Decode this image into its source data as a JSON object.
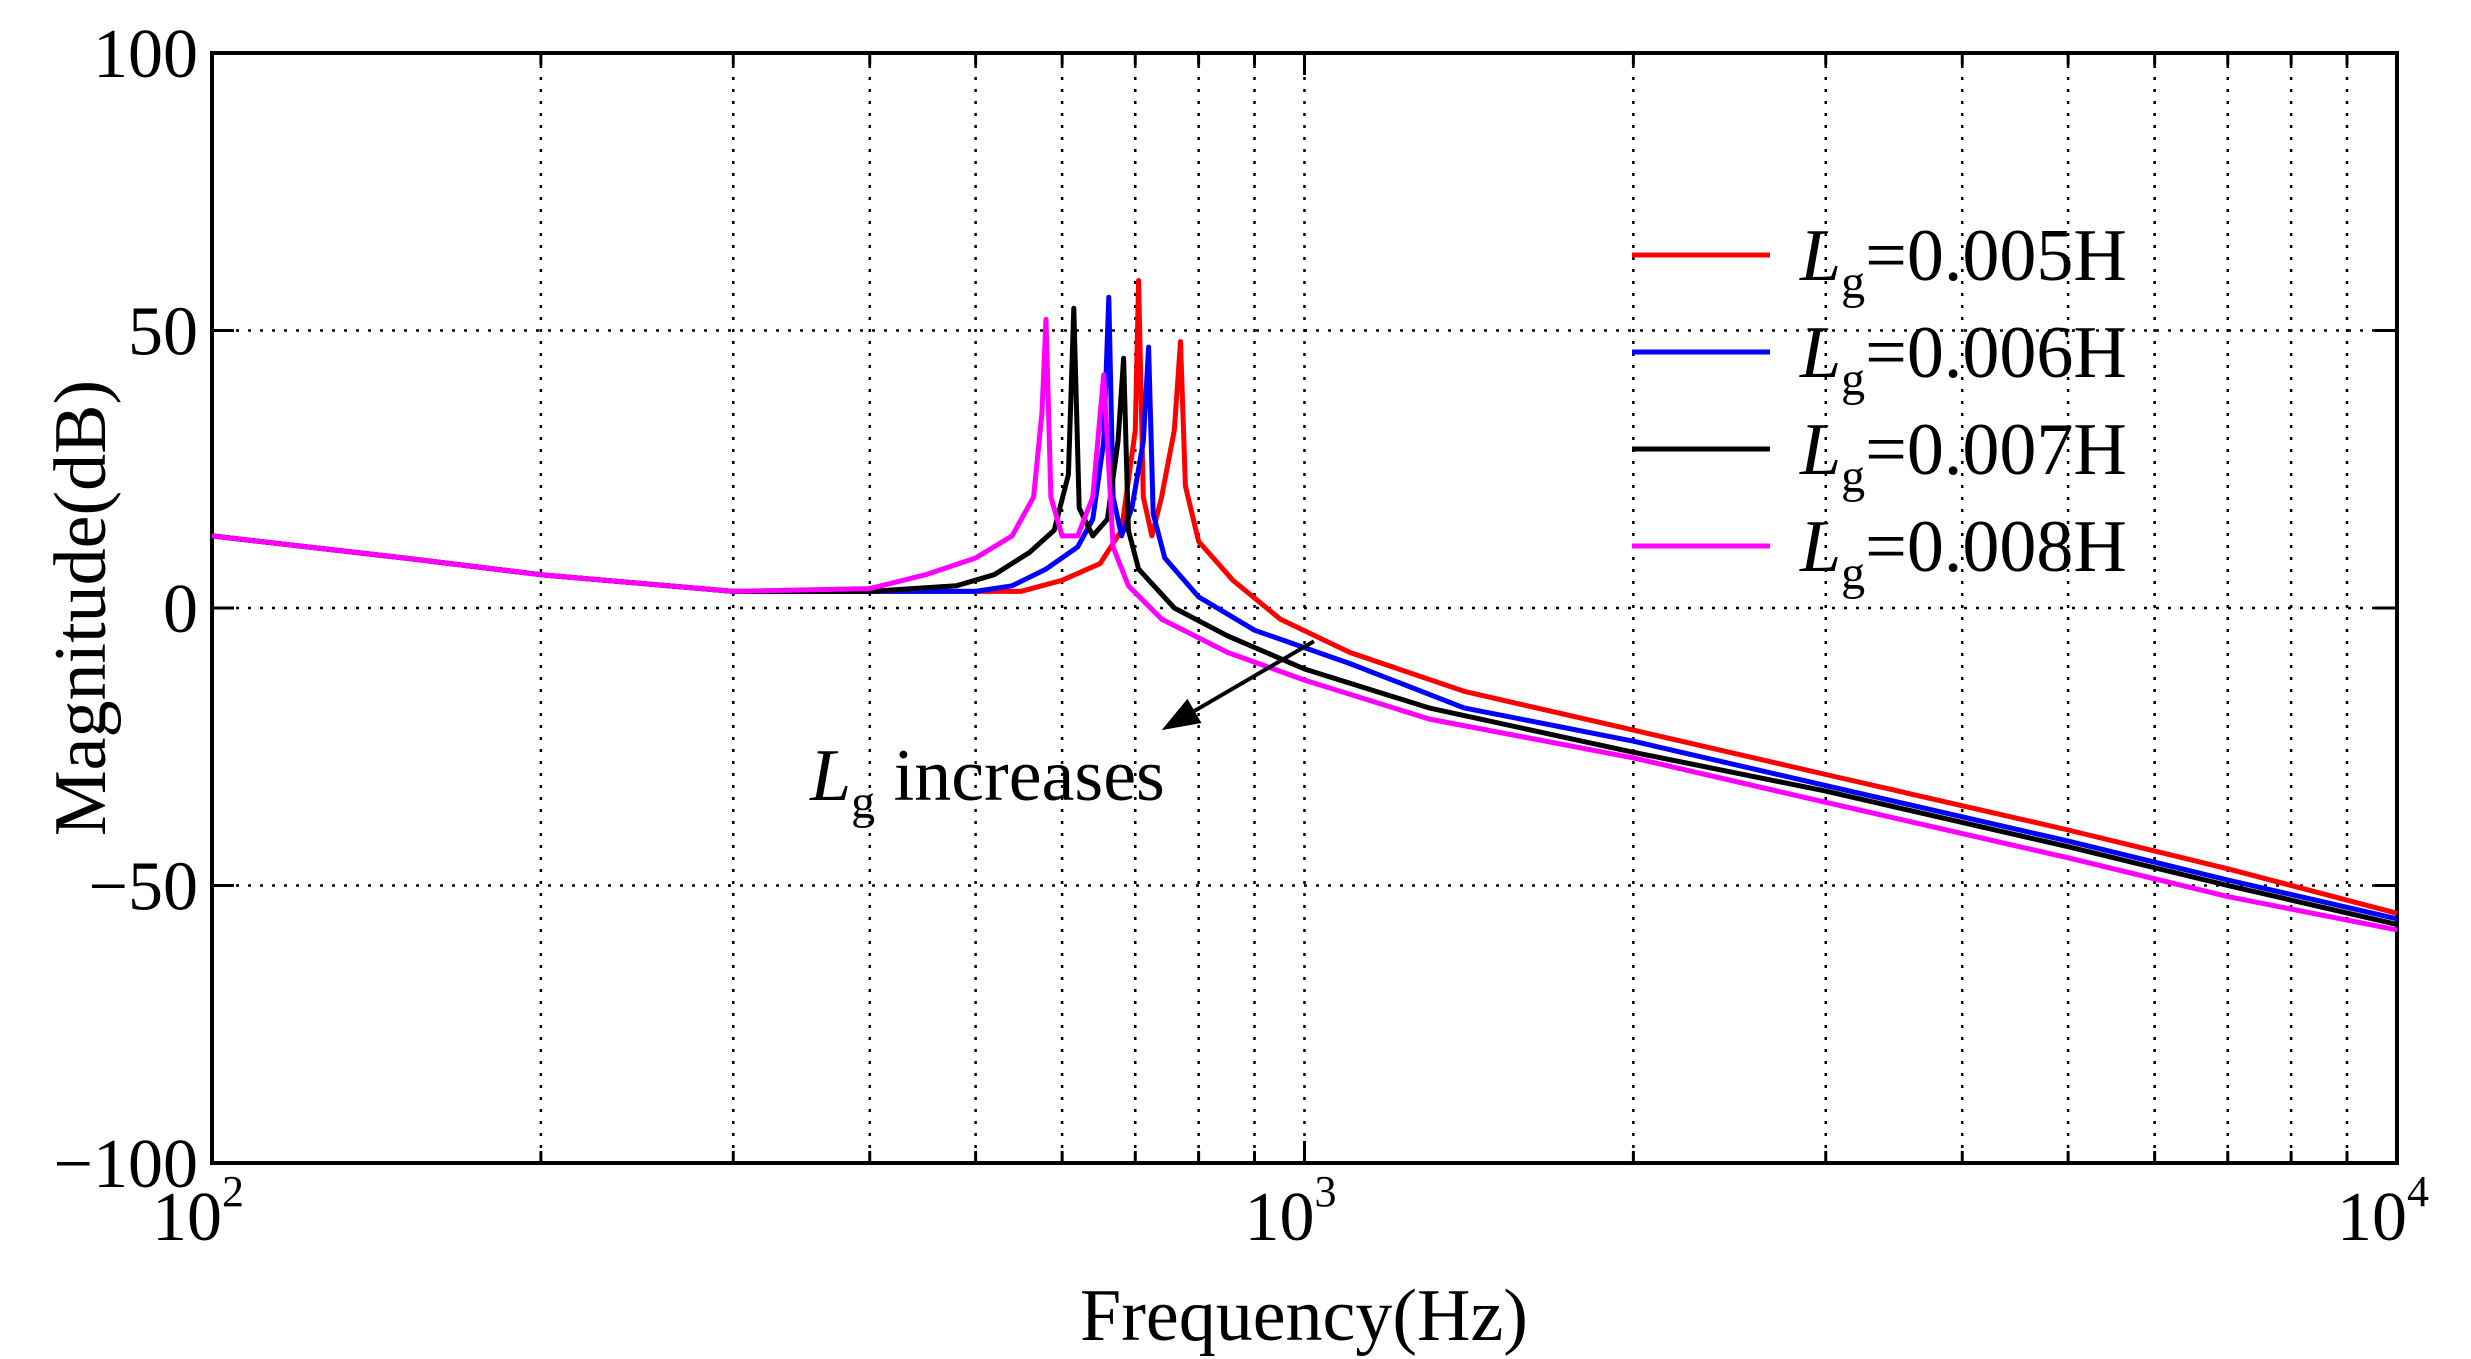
{
  "chart_data": {
    "type": "line",
    "title": "",
    "xlabel": "Frequency(Hz)",
    "ylabel": "Magnitude(dB)",
    "xscale": "log",
    "xlim": [
      100,
      10000
    ],
    "ylim": [
      -100,
      100
    ],
    "grid": true,
    "y_ticks": [
      {
        "value": 100,
        "label": "100"
      },
      {
        "value": 50,
        "label": "50"
      },
      {
        "value": 0,
        "label": "0"
      },
      {
        "value": -50,
        "label": "−50"
      },
      {
        "value": -100,
        "label": "−100"
      }
    ],
    "x_ticks": [
      {
        "value": 100,
        "base": "10",
        "exp": "2"
      },
      {
        "value": 1000,
        "base": "10",
        "exp": "3"
      },
      {
        "value": 10000,
        "base": "10",
        "exp": "4"
      }
    ],
    "legend_position": "top-right",
    "annotation": {
      "symbol": "L",
      "subscript": "g",
      "text": " increases",
      "arrow_from": [
        1020,
        -6
      ],
      "arrow_to": [
        740,
        -22
      ]
    },
    "series": [
      {
        "name": "Lg=0.005H",
        "symbol": "L",
        "subscript": "g",
        "value_text": "=0.005H",
        "color": "#ff0000",
        "points": [
          [
            100,
            13
          ],
          [
            150,
            9
          ],
          [
            200,
            6
          ],
          [
            300,
            3
          ],
          [
            400,
            3
          ],
          [
            500,
            3
          ],
          [
            550,
            3
          ],
          [
            600,
            5
          ],
          [
            650,
            8
          ],
          [
            680,
            14
          ],
          [
            700,
            32
          ],
          [
            705,
            59
          ],
          [
            712,
            20
          ],
          [
            725,
            13
          ],
          [
            740,
            20
          ],
          [
            760,
            32
          ],
          [
            770,
            48
          ],
          [
            778,
            22
          ],
          [
            800,
            12
          ],
          [
            860,
            5
          ],
          [
            950,
            -2
          ],
          [
            1100,
            -8
          ],
          [
            1400,
            -15
          ],
          [
            2000,
            -22
          ],
          [
            3000,
            -30
          ],
          [
            5000,
            -40
          ],
          [
            7000,
            -47
          ],
          [
            10000,
            -55
          ]
        ]
      },
      {
        "name": "Lg=0.006H",
        "symbol": "L",
        "subscript": "g",
        "value_text": "=0.006H",
        "color": "#0000ff",
        "points": [
          [
            100,
            13
          ],
          [
            150,
            9
          ],
          [
            200,
            6
          ],
          [
            300,
            3
          ],
          [
            400,
            3
          ],
          [
            500,
            3
          ],
          [
            540,
            4
          ],
          [
            580,
            7
          ],
          [
            620,
            11
          ],
          [
            640,
            16
          ],
          [
            655,
            30
          ],
          [
            662,
            56
          ],
          [
            668,
            20
          ],
          [
            680,
            13
          ],
          [
            695,
            18
          ],
          [
            712,
            30
          ],
          [
            720,
            47
          ],
          [
            727,
            17
          ],
          [
            745,
            9
          ],
          [
            800,
            2
          ],
          [
            900,
            -4
          ],
          [
            1100,
            -10
          ],
          [
            1400,
            -18
          ],
          [
            2000,
            -24
          ],
          [
            3000,
            -32
          ],
          [
            5000,
            -42
          ],
          [
            7000,
            -49
          ],
          [
            10000,
            -56
          ]
        ]
      },
      {
        "name": "Lg=0.007H",
        "symbol": "L",
        "subscript": "g",
        "value_text": "=0.007H",
        "color": "#000000",
        "points": [
          [
            100,
            13
          ],
          [
            150,
            9
          ],
          [
            200,
            6
          ],
          [
            300,
            3
          ],
          [
            400,
            3
          ],
          [
            480,
            4
          ],
          [
            520,
            6
          ],
          [
            560,
            10
          ],
          [
            590,
            14
          ],
          [
            608,
            24
          ],
          [
            615,
            54
          ],
          [
            622,
            18
          ],
          [
            640,
            13
          ],
          [
            660,
            16
          ],
          [
            675,
            30
          ],
          [
            683,
            45
          ],
          [
            690,
            14
          ],
          [
            705,
            7
          ],
          [
            760,
            0
          ],
          [
            850,
            -5
          ],
          [
            1000,
            -11
          ],
          [
            1300,
            -18
          ],
          [
            2000,
            -26
          ],
          [
            3000,
            -33
          ],
          [
            5000,
            -43
          ],
          [
            7000,
            -50
          ],
          [
            10000,
            -57
          ]
        ]
      },
      {
        "name": "Lg=0.008H",
        "symbol": "L",
        "subscript": "g",
        "value_text": "=0.008H",
        "color": "#ff00ff",
        "points": [
          [
            100,
            13
          ],
          [
            150,
            9
          ],
          [
            200,
            6
          ],
          [
            300,
            3
          ],
          [
            400,
            3.5
          ],
          [
            450,
            6
          ],
          [
            500,
            9
          ],
          [
            540,
            13
          ],
          [
            565,
            20
          ],
          [
            575,
            35
          ],
          [
            580,
            52
          ],
          [
            586,
            20
          ],
          [
            600,
            13
          ],
          [
            620,
            13
          ],
          [
            640,
            20
          ],
          [
            655,
            42
          ],
          [
            660,
            30
          ],
          [
            668,
            11
          ],
          [
            690,
            4
          ],
          [
            740,
            -2
          ],
          [
            850,
            -8
          ],
          [
            1000,
            -13
          ],
          [
            1300,
            -20
          ],
          [
            2000,
            -27
          ],
          [
            3000,
            -35
          ],
          [
            5000,
            -45
          ],
          [
            7000,
            -52
          ],
          [
            10000,
            -58
          ]
        ]
      }
    ]
  }
}
